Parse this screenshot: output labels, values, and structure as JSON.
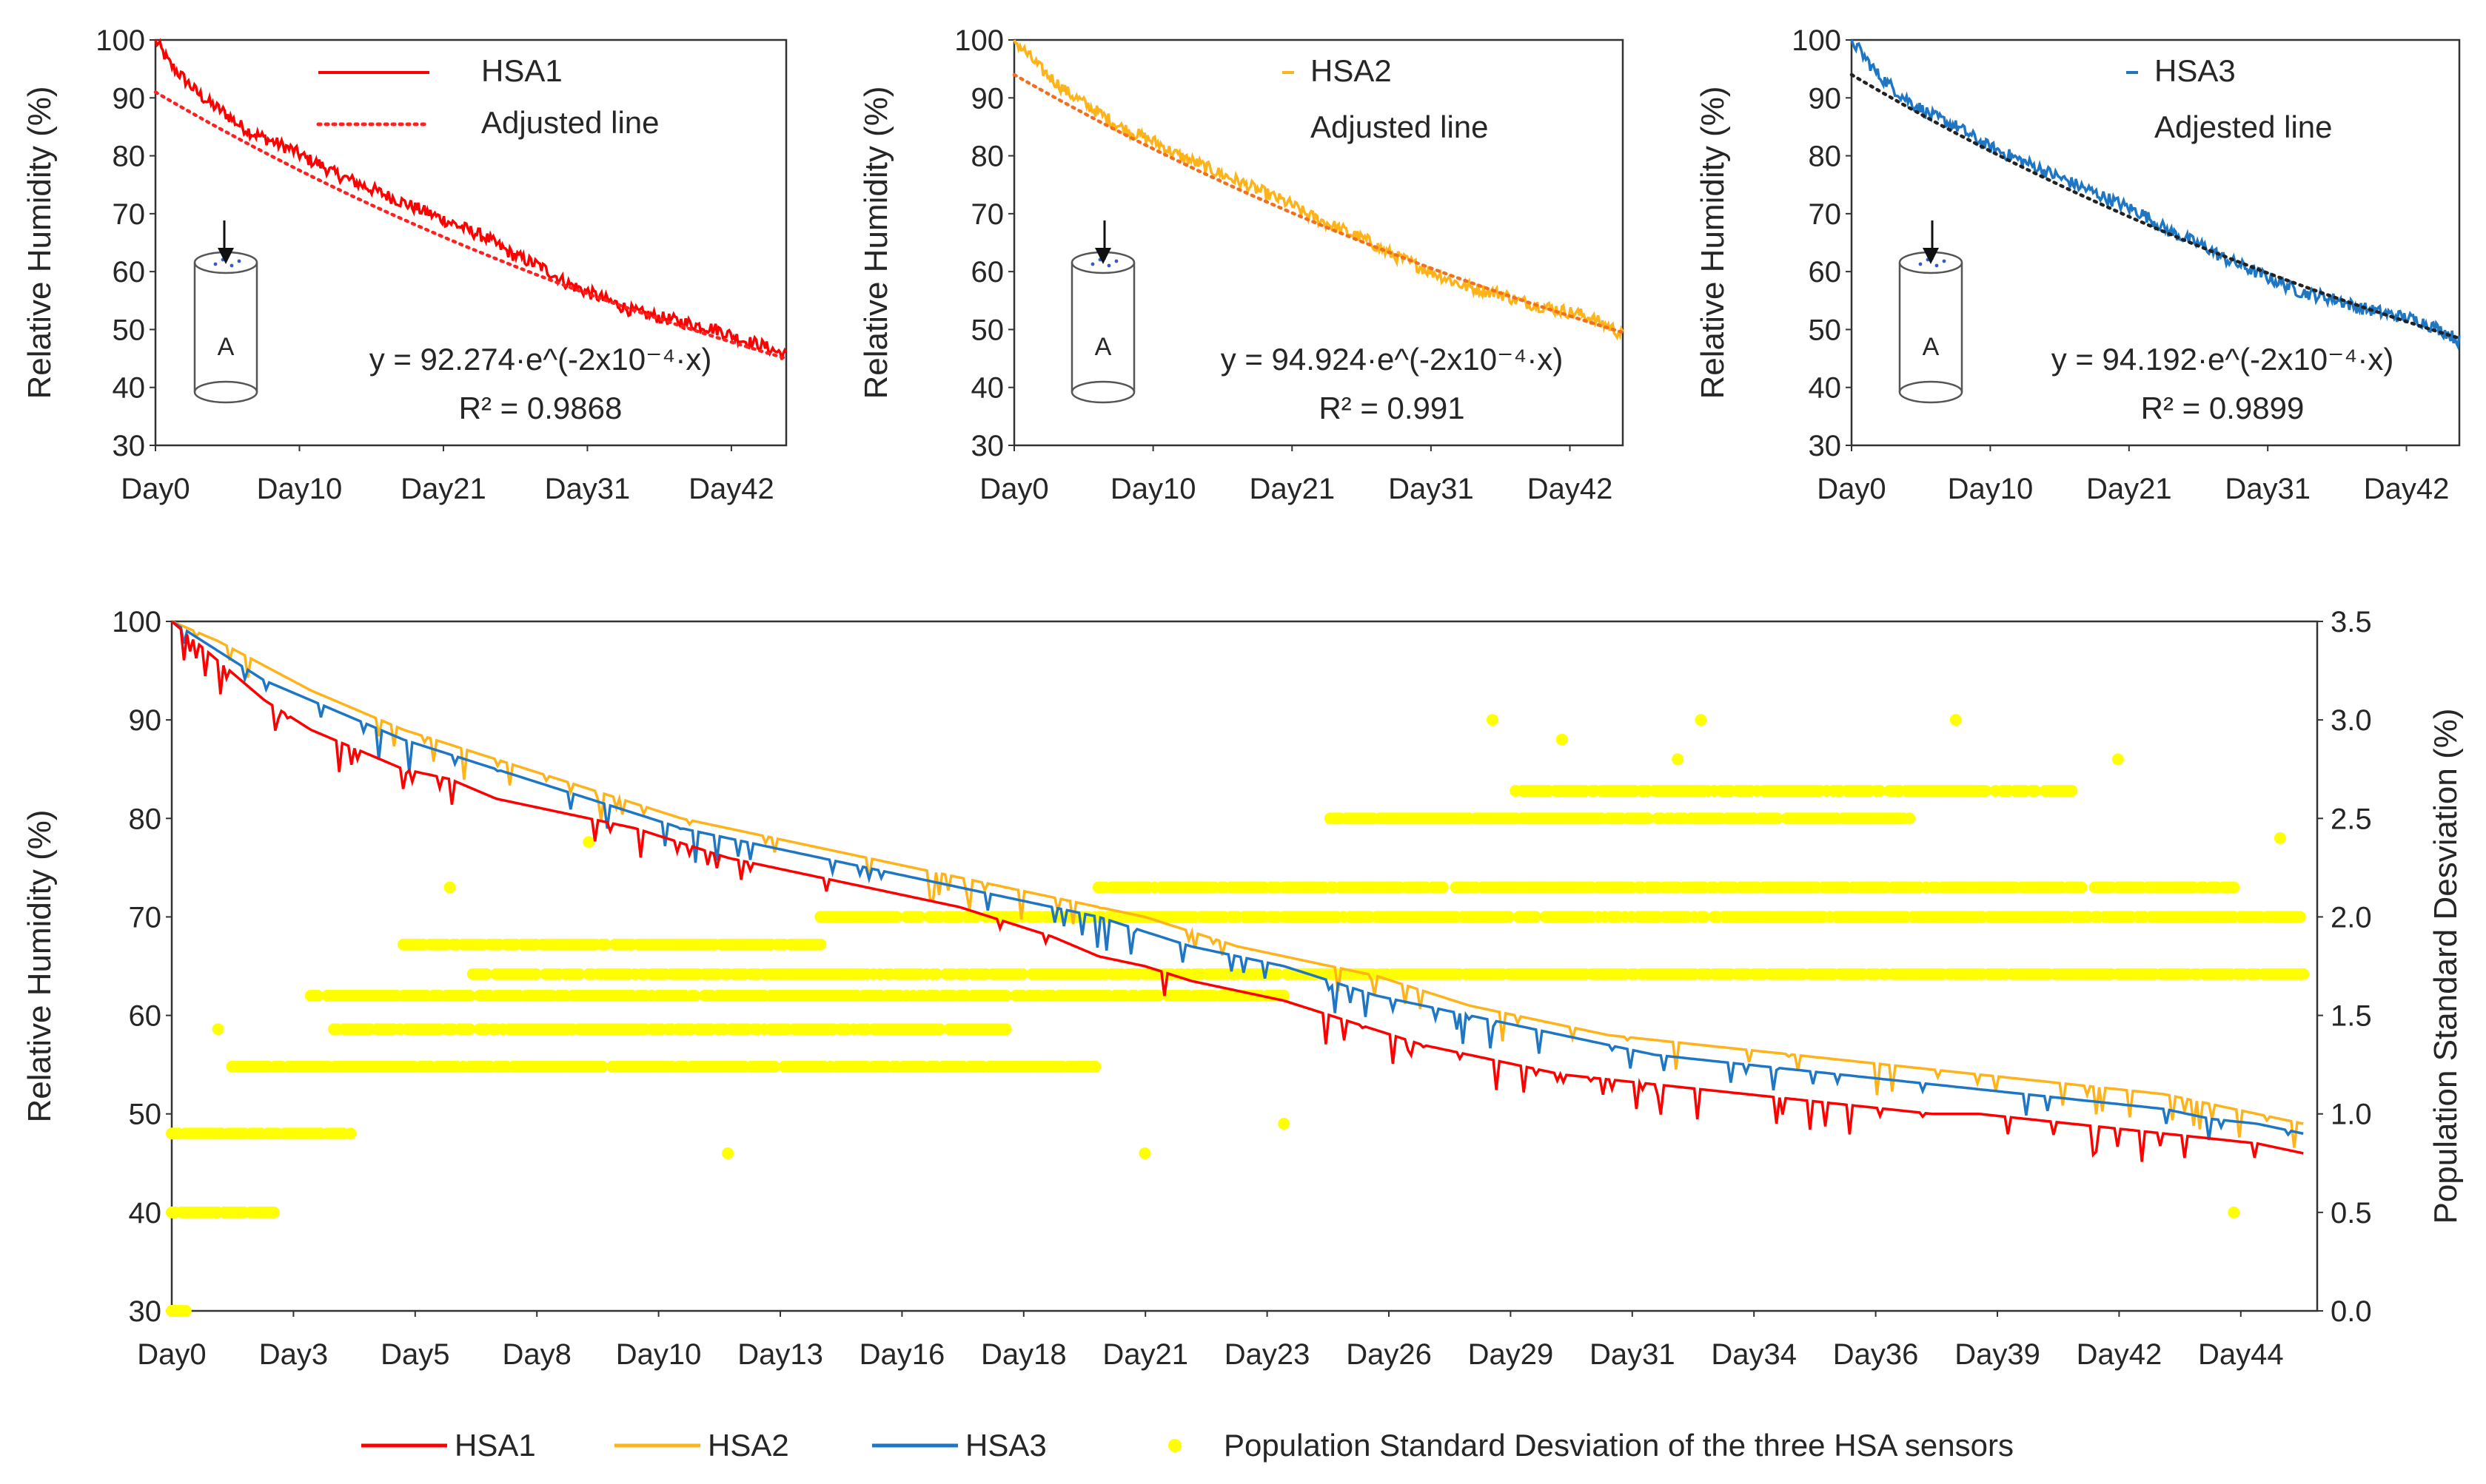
{
  "figure": {
    "panel_count": 4
  },
  "colors": {
    "HSA1": "#ff0000",
    "HSA2": "#ffb31a",
    "HSA3": "#1f77c4",
    "std": "#ffff00",
    "fit_hsa1": "#ff2020",
    "fit_hsa2": "#f07020",
    "fit_hsa3": "#222222"
  },
  "chart_data": [
    {
      "id": "hsa1",
      "type": "line",
      "title": "",
      "xlabel": "",
      "ylabel": "Relative Humidity (%)",
      "x_range_days": [
        0,
        46
      ],
      "ylim": [
        30,
        100
      ],
      "yticks": [
        30,
        40,
        50,
        60,
        70,
        80,
        90,
        100
      ],
      "xtick_labels": [
        "Day0",
        "Day10",
        "Day21",
        "Day31",
        "Day42"
      ],
      "xtick_days": [
        0,
        10.5,
        21,
        31.5,
        42
      ],
      "series": [
        {
          "name": "HSA1",
          "style": "solid",
          "x": [
            0,
            1,
            2,
            3,
            4,
            5,
            6,
            7,
            8,
            9,
            10,
            11,
            12,
            13,
            14,
            15,
            16,
            17,
            18,
            19,
            20,
            21,
            22,
            23,
            24,
            25,
            26,
            27,
            28,
            29,
            30,
            31,
            32,
            33,
            34,
            35,
            36,
            37,
            38,
            39,
            40,
            41,
            42,
            43,
            44,
            45,
            46
          ],
          "values": [
            100,
            96,
            93.5,
            91,
            89,
            87.5,
            85.5,
            84,
            83,
            82,
            81,
            79.5,
            78.5,
            77,
            76,
            75,
            74,
            73,
            72,
            71,
            70,
            69,
            68,
            67,
            66,
            64.5,
            63,
            62,
            61,
            59.5,
            58,
            57,
            56,
            55,
            54,
            53,
            52.5,
            52,
            51.5,
            51,
            50.5,
            50,
            49,
            48,
            47.5,
            46.5,
            45.5
          ]
        },
        {
          "name": "Adjusted line",
          "style": "dotted",
          "equation": "y = 92.274·e^(-2x10⁻⁴·x)",
          "r2": "R² = 0.9868"
        }
      ],
      "legend": [
        "HSA1",
        "Adjusted line"
      ],
      "annotations": {
        "equation": "y = 92.274·e^(-2x10⁻⁴·x)",
        "r2": "R² = 0.9868",
        "sensor_label": "A"
      }
    },
    {
      "id": "hsa2",
      "type": "line",
      "title": "",
      "xlabel": "",
      "ylabel": "Relative Humidity (%)",
      "x_range_days": [
        0,
        46
      ],
      "ylim": [
        30,
        100
      ],
      "yticks": [
        30,
        40,
        50,
        60,
        70,
        80,
        90,
        100
      ],
      "xtick_labels": [
        "Day0",
        "Day10",
        "Day21",
        "Day31",
        "Day42"
      ],
      "xtick_days": [
        0,
        10.5,
        21,
        31.5,
        42
      ],
      "series": [
        {
          "name": "HSA2",
          "style": "solid",
          "x": [
            0,
            1,
            2,
            3,
            4,
            5,
            6,
            7,
            8,
            9,
            10,
            11,
            12,
            13,
            14,
            15,
            16,
            17,
            18,
            19,
            20,
            21,
            22,
            23,
            24,
            25,
            26,
            27,
            28,
            29,
            30,
            31,
            32,
            33,
            34,
            35,
            36,
            37,
            38,
            39,
            40,
            41,
            42,
            43,
            44,
            45,
            46
          ],
          "values": [
            100,
            97.5,
            95,
            93,
            91,
            89.5,
            88,
            86.5,
            85,
            84,
            83,
            82,
            80.5,
            79.5,
            78.5,
            77.5,
            76.5,
            75.5,
            74.5,
            73.5,
            72.5,
            71.5,
            70,
            69,
            68,
            67,
            66,
            65,
            63.5,
            62.5,
            61.5,
            60.5,
            59.5,
            58.5,
            57.5,
            57,
            56.5,
            56,
            55,
            54.5,
            54,
            53.5,
            53,
            52.5,
            51.5,
            50.5,
            49
          ]
        },
        {
          "name": "Adjusted line",
          "style": "dotted",
          "equation": "y = 94.924·e^(-2x10⁻⁴·x)",
          "r2": "R² = 0.991"
        }
      ],
      "legend": [
        "HSA2",
        "Adjusted line"
      ],
      "annotations": {
        "equation": "y = 94.924·e^(-2x10⁻⁴·x)",
        "r2": "R² = 0.991",
        "sensor_label": "A"
      }
    },
    {
      "id": "hsa3",
      "type": "line",
      "title": "",
      "xlabel": "",
      "ylabel": "Relative Humidity (%)",
      "x_range_days": [
        0,
        46
      ],
      "ylim": [
        30,
        100
      ],
      "yticks": [
        30,
        40,
        50,
        60,
        70,
        80,
        90,
        100
      ],
      "xtick_labels": [
        "Day0",
        "Day10",
        "Day21",
        "Day31",
        "Day42"
      ],
      "xtick_days": [
        0,
        10.5,
        21,
        31.5,
        42
      ],
      "series": [
        {
          "name": "HSA3",
          "style": "solid",
          "x": [
            0,
            1,
            2,
            3,
            4,
            5,
            6,
            7,
            8,
            9,
            10,
            11,
            12,
            13,
            14,
            15,
            16,
            17,
            18,
            19,
            20,
            21,
            22,
            23,
            24,
            25,
            26,
            27,
            28,
            29,
            30,
            31,
            32,
            33,
            34,
            35,
            36,
            37,
            38,
            39,
            40,
            41,
            42,
            43,
            44,
            45,
            46
          ],
          "values": [
            100,
            97,
            94,
            92,
            90,
            88.5,
            87,
            86,
            85,
            83.5,
            82,
            81,
            80,
            79,
            78,
            77,
            76,
            75,
            74,
            73,
            72,
            71,
            70,
            68.5,
            67,
            66,
            65,
            64,
            62.5,
            61.5,
            60.5,
            59.5,
            58.5,
            57.5,
            56.5,
            56,
            55.5,
            55,
            54,
            53.5,
            53,
            52.5,
            52,
            51.5,
            50.5,
            49.5,
            48
          ]
        },
        {
          "name": "Adjested line",
          "style": "dotted",
          "equation": "y = 94.192·e^(-2x10⁻⁴·x)",
          "r2": "R² = 0.9899"
        }
      ],
      "legend": [
        "HSA3",
        "Adjested line"
      ],
      "annotations": {
        "equation": "y = 94.192·e^(-2x10⁻⁴·x)",
        "r2": "R² = 0.9899",
        "sensor_label": "A"
      }
    },
    {
      "id": "combined",
      "type": "line",
      "title": "",
      "xlabel": "",
      "ylabel": "Relative Humidity (%)",
      "y2label": "Population Standard Desviation (%)",
      "x_range_days": [
        0,
        46
      ],
      "ylim": [
        30,
        100
      ],
      "y2lim": [
        0,
        3.5
      ],
      "yticks": [
        30,
        40,
        50,
        60,
        70,
        80,
        90,
        100
      ],
      "y2ticks": [
        "0.0",
        "0.5",
        "1.0",
        "1.5",
        "2.0",
        "2.5",
        "3.0",
        "3.5"
      ],
      "xtick_labels": [
        "Day0",
        "Day3",
        "Day5",
        "Day8",
        "Day10",
        "Day13",
        "Day16",
        "Day18",
        "Day21",
        "Day23",
        "Day26",
        "Day29",
        "Day31",
        "Day34",
        "Day36",
        "Day39",
        "Day42",
        "Day44"
      ],
      "series": [
        {
          "name": "HSA1",
          "axis": "left",
          "x": [
            0,
            1,
            2,
            3,
            4,
            5,
            6,
            7,
            8,
            9,
            10,
            11,
            12,
            13,
            14,
            15,
            16,
            17,
            18,
            19,
            20,
            21,
            22,
            23,
            24,
            25,
            26,
            27,
            28,
            29,
            30,
            31,
            32,
            33,
            34,
            35,
            36,
            37,
            38,
            39,
            40,
            41,
            42,
            43,
            44,
            45,
            46
          ],
          "values": [
            100,
            96,
            92,
            89,
            87,
            85,
            84,
            82,
            81,
            80,
            79,
            77.5,
            76,
            75,
            74,
            73,
            72,
            71,
            69.5,
            68,
            66,
            65,
            63.5,
            62.5,
            61.5,
            60,
            58.5,
            57,
            56,
            55,
            54,
            53.5,
            53,
            52.5,
            52,
            51.5,
            51,
            50.5,
            50,
            50,
            49.5,
            49,
            48.5,
            48,
            47.5,
            47,
            46
          ]
        },
        {
          "name": "HSA2",
          "axis": "left",
          "x": [
            0,
            1,
            2,
            3,
            4,
            5,
            6,
            7,
            8,
            9,
            10,
            11,
            12,
            13,
            14,
            15,
            16,
            17,
            18,
            19,
            20,
            21,
            22,
            23,
            24,
            25,
            26,
            27,
            28,
            29,
            30,
            31,
            32,
            33,
            34,
            35,
            36,
            37,
            38,
            39,
            40,
            41,
            42,
            43,
            44,
            45,
            46
          ],
          "values": [
            100,
            98,
            95.5,
            93,
            91,
            89,
            87.5,
            86,
            84.5,
            83,
            81.5,
            80,
            79,
            78,
            77,
            76,
            75,
            74,
            73,
            72,
            71,
            70,
            68.5,
            67,
            66,
            65,
            64,
            62.5,
            61,
            60,
            59,
            58,
            57.5,
            57,
            56.5,
            56,
            55.5,
            55,
            54.5,
            54,
            53.5,
            53,
            52.5,
            52,
            51,
            50,
            49
          ]
        },
        {
          "name": "HSA3",
          "axis": "left",
          "x": [
            0,
            1,
            2,
            3,
            4,
            5,
            6,
            7,
            8,
            9,
            10,
            11,
            12,
            13,
            14,
            15,
            16,
            17,
            18,
            19,
            20,
            21,
            22,
            23,
            24,
            25,
            26,
            27,
            28,
            29,
            30,
            31,
            32,
            33,
            34,
            35,
            36,
            37,
            38,
            39,
            40,
            41,
            42,
            43,
            44,
            45,
            46
          ],
          "values": [
            100,
            97,
            94,
            92,
            90,
            88,
            86.5,
            85,
            83.5,
            82,
            80.5,
            79,
            78,
            77,
            76,
            75,
            74,
            73,
            72,
            71,
            70,
            68.5,
            67,
            66,
            65,
            63.5,
            62,
            61,
            60,
            59,
            58,
            57,
            56,
            55.5,
            55,
            54.5,
            54,
            53.5,
            53,
            52.5,
            52,
            51.5,
            51,
            50.5,
            49.5,
            49,
            48
          ]
        },
        {
          "name": "Population Standard Desviation of the three HSA sensors",
          "axis": "right",
          "type": "scatter",
          "bands": [
            {
              "value": 0.0,
              "from_day": 0,
              "to_day": 0.3
            },
            {
              "value": 0.5,
              "from_day": 0,
              "to_day": 2.2
            },
            {
              "value": 0.9,
              "from_day": 0,
              "to_day": 4.0
            },
            {
              "value": 1.24,
              "from_day": 1.3,
              "to_day": 20
            },
            {
              "value": 1.43,
              "from_day": 3.5,
              "to_day": 18
            },
            {
              "value": 1.6,
              "from_day": 3.0,
              "to_day": 24
            },
            {
              "value": 1.71,
              "from_day": 6.5,
              "to_day": 46
            },
            {
              "value": 1.86,
              "from_day": 5.0,
              "to_day": 14
            },
            {
              "value": 2.0,
              "from_day": 14,
              "to_day": 46
            },
            {
              "value": 2.15,
              "from_day": 20,
              "to_day": 44.5
            },
            {
              "value": 2.5,
              "from_day": 25,
              "to_day": 37.5
            },
            {
              "value": 2.64,
              "from_day": 29,
              "to_day": 41
            }
          ],
          "isolated": [
            [
              1,
              1.43
            ],
            [
              6,
              2.15
            ],
            [
              9,
              2.38
            ],
            [
              11,
              1.86
            ],
            [
              12,
              0.8
            ],
            [
              21,
              0.8
            ],
            [
              24,
              0.95
            ],
            [
              28.5,
              3.0
            ],
            [
              30,
              2.9
            ],
            [
              32.5,
              2.8
            ],
            [
              33,
              3.0
            ],
            [
              38.5,
              3.0
            ],
            [
              42,
              2.8
            ],
            [
              44.5,
              0.5
            ],
            [
              45.5,
              2.4
            ]
          ]
        }
      ],
      "legend": [
        "HSA1",
        "HSA2",
        "HSA3",
        "Population Standard Desviation of the three HSA sensors"
      ]
    }
  ]
}
